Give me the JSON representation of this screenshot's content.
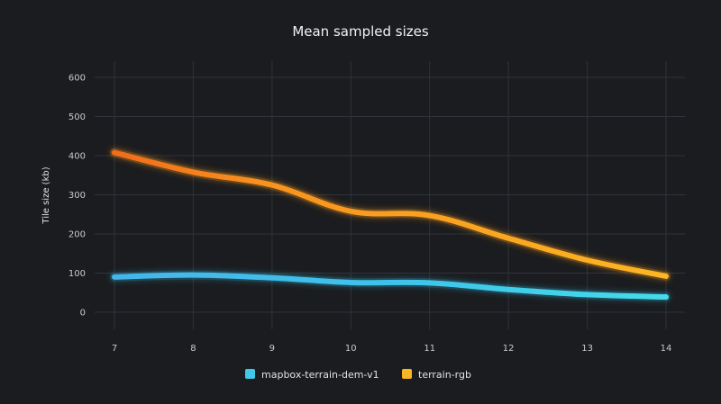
{
  "chart_data": {
    "type": "line",
    "title": "Mean sampled sizes",
    "xlabel": "",
    "ylabel": "Tile size (kb)",
    "x": [
      7,
      8,
      9,
      10,
      11,
      12,
      13,
      14
    ],
    "x_tick_labels": [
      "7",
      "8",
      "9",
      "10",
      "11",
      "12",
      "13",
      "14"
    ],
    "ylim": [
      0,
      600
    ],
    "y_ticks": [
      0,
      100,
      200,
      300,
      400,
      500,
      600
    ],
    "y_tick_labels": [
      "0",
      "100",
      "200",
      "300",
      "400",
      "500",
      "600"
    ],
    "grid": true,
    "legend_position": "bottom-center",
    "series": [
      {
        "name": "mapbox-terrain-dem-v1",
        "color": "#41c8e8",
        "glow": "#2a9fc0",
        "values": [
          90,
          95,
          88,
          76,
          75,
          58,
          45,
          39
        ]
      },
      {
        "name": "terrain-rgb",
        "color": "#fcb623",
        "color_end": "#f36b1c",
        "glow": "#f59a1a",
        "values": [
          408,
          358,
          325,
          258,
          247,
          189,
          133,
          92
        ]
      }
    ]
  }
}
